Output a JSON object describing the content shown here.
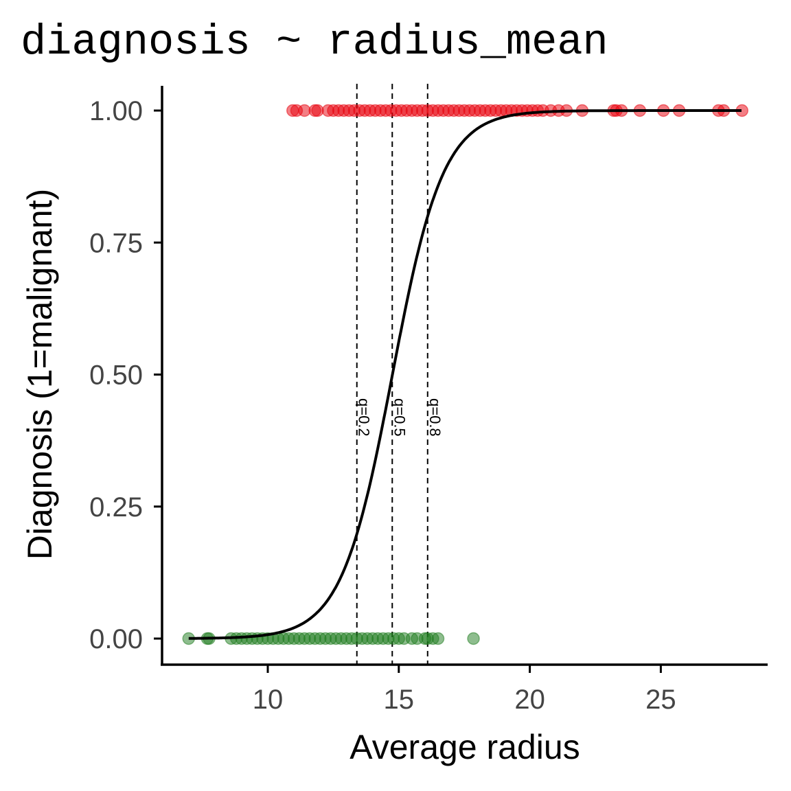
{
  "chart_data": {
    "type": "scatter",
    "title": "diagnosis ~ radius_mean",
    "xlabel": "Average radius",
    "ylabel": "Diagnosis (1=malignant)",
    "xlim": [
      6.0,
      29.2
    ],
    "ylim": [
      -0.05,
      1.05
    ],
    "x_ticks": [
      10,
      15,
      20,
      25
    ],
    "y_ticks": [
      "0.00",
      "0.25",
      "0.50",
      "0.75",
      "1.00"
    ],
    "grid": false,
    "colors": {
      "malignant": "#e8000b",
      "benign": "#1e7b1e",
      "curve": "#000000"
    },
    "series": [
      {
        "y": 0,
        "x": [
          6.98,
          7.69,
          7.76,
          8.6,
          8.8,
          9.0,
          9.2,
          9.4,
          9.6,
          9.8,
          10.0,
          10.2,
          10.4,
          10.6,
          10.8,
          11.0,
          11.2,
          11.4,
          11.6,
          11.8,
          12.0,
          12.2,
          12.4,
          12.6,
          12.8,
          13.0,
          13.2,
          13.4,
          13.6,
          13.8,
          14.0,
          14.2,
          14.4,
          14.6,
          14.8,
          15.0,
          15.2,
          15.5,
          15.7,
          16.0,
          16.1,
          16.3,
          16.5,
          17.85
        ]
      },
      {
        "y": 1,
        "x": [
          10.95,
          11.1,
          11.4,
          11.8,
          11.9,
          12.3,
          12.5,
          12.7,
          12.9,
          13.1,
          13.3,
          13.5,
          13.7,
          13.9,
          14.1,
          14.3,
          14.5,
          14.7,
          14.9,
          15.1,
          15.3,
          15.5,
          15.7,
          15.9,
          16.1,
          16.3,
          16.5,
          16.7,
          16.9,
          17.1,
          17.3,
          17.5,
          17.7,
          17.9,
          18.1,
          18.3,
          18.5,
          18.7,
          18.9,
          19.1,
          19.3,
          19.5,
          19.7,
          19.9,
          20.1,
          20.3,
          20.5,
          20.8,
          21.1,
          21.4,
          22.0,
          23.2,
          23.3,
          23.5,
          24.2,
          25.1,
          25.7,
          27.2,
          27.4,
          28.1
        ]
      }
    ],
    "logistic_fit": {
      "intercept": -15.2,
      "slope": 1.03,
      "x_range": [
        6.98,
        28.1
      ]
    },
    "quantile_lines": [
      {
        "label": "q=0.2",
        "x": 13.4
      },
      {
        "label": "q=0.5",
        "x": 14.75
      },
      {
        "label": "q=0.8",
        "x": 16.1
      }
    ]
  }
}
